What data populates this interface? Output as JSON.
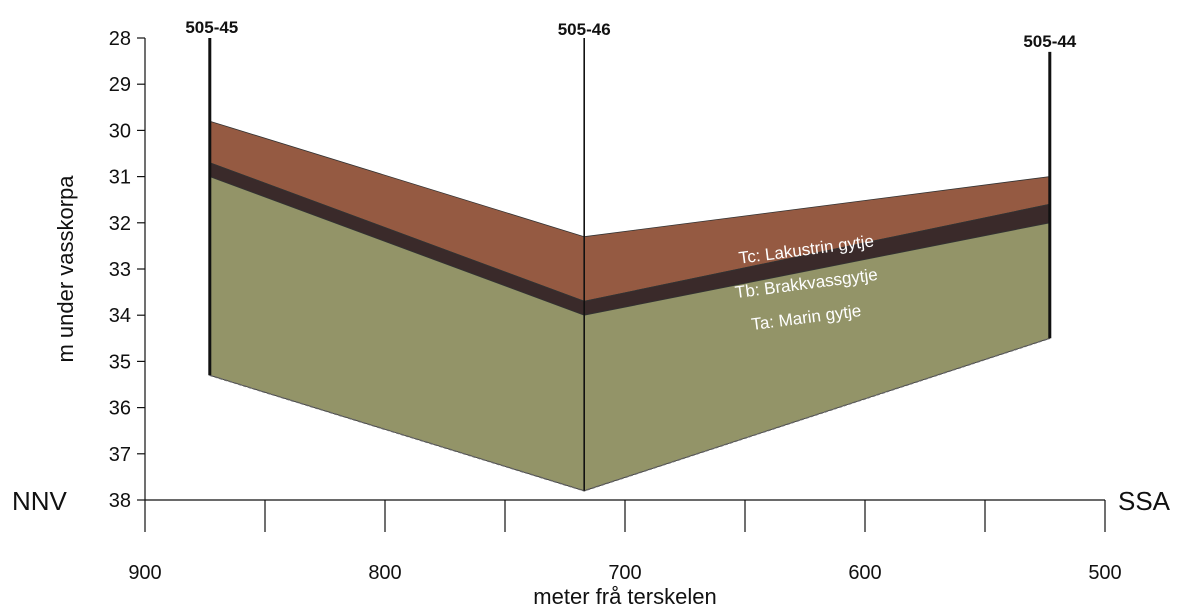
{
  "chart_data": {
    "type": "area",
    "xlabel": "meter frå terskelen",
    "ylabel": "m under vasskorpa",
    "xlim": [
      900,
      500
    ],
    "ylim": [
      38,
      28
    ],
    "x_ticks": [
      900,
      800,
      700,
      600,
      500
    ],
    "y_ticks": [
      28,
      29,
      30,
      31,
      32,
      33,
      34,
      35,
      36,
      37,
      38
    ],
    "left_direction": "NNV",
    "right_direction": "SSA",
    "cores": [
      {
        "name": "505-45",
        "x": 873,
        "top": 28.0,
        "bottom": 35.3
      },
      {
        "name": "505-46",
        "x": 717,
        "top": 28.0,
        "bottom": 37.8
      },
      {
        "name": "505-44",
        "x": 523,
        "top": 28.3,
        "bottom": 34.5
      }
    ],
    "layers": [
      {
        "name": "Tc: Lakustrin gytje",
        "color": "#955a42",
        "top": [
          29.8,
          32.3,
          31.0
        ],
        "bottom": [
          30.7,
          33.7,
          31.6
        ]
      },
      {
        "name": "Tb: Brakkvassgytje",
        "color": "#3a2a2a",
        "top": [
          30.7,
          33.7,
          31.6
        ],
        "bottom": [
          31.0,
          34.0,
          32.0
        ]
      },
      {
        "name": "Ta: Marin gytje",
        "color": "#939468",
        "top": [
          31.0,
          34.0,
          32.0
        ],
        "bottom": [
          35.3,
          37.8,
          34.5
        ]
      }
    ]
  }
}
